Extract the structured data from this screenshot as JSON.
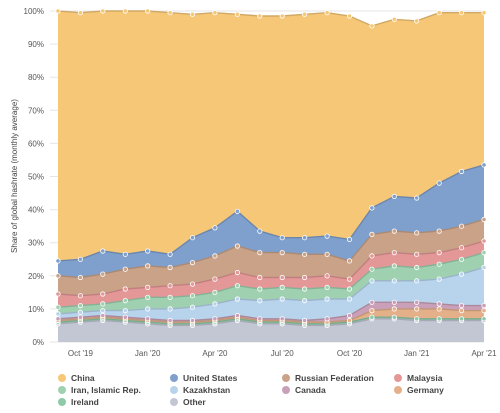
{
  "chart_data": {
    "type": "area",
    "stacked": true,
    "ylabel": "Share of global hashrate (monthly average)",
    "y_ticks": [
      "0%",
      "10%",
      "20%",
      "30%",
      "40%",
      "50%",
      "60%",
      "70%",
      "80%",
      "90%",
      "100%"
    ],
    "ylim": [
      0,
      100
    ],
    "x_ticks": [
      {
        "label": "Oct '19",
        "month": "2019-10"
      },
      {
        "label": "Jan '20",
        "month": "2020-01"
      },
      {
        "label": "Apr '20",
        "month": "2020-04"
      },
      {
        "label": "Jul '20",
        "month": "2020-07"
      },
      {
        "label": "Oct '20",
        "month": "2020-10"
      },
      {
        "label": "Jan '21",
        "month": "2021-01"
      },
      {
        "label": "Apr '21",
        "month": "2021-04"
      }
    ],
    "x": [
      "2019-09",
      "2019-10",
      "2019-11",
      "2019-12",
      "2020-01",
      "2020-02",
      "2020-03",
      "2020-04",
      "2020-05",
      "2020-06",
      "2020-07",
      "2020-08",
      "2020-09",
      "2020-10",
      "2020-11",
      "2020-12",
      "2021-01",
      "2021-02",
      "2021-03",
      "2021-04"
    ],
    "legend_position": "bottom",
    "series": [
      {
        "name": "Other",
        "color": "#c3c7d4",
        "values": [
          5.5,
          6.0,
          6.5,
          6.0,
          5.5,
          5.0,
          5.0,
          5.5,
          6.5,
          5.5,
          5.5,
          5.0,
          5.0,
          5.5,
          7.0,
          7.0,
          6.5,
          6.5,
          6.5,
          6.5
        ]
      },
      {
        "name": "Ireland",
        "color": "#8ec9a8",
        "values": [
          0.5,
          0.5,
          0.5,
          0.5,
          0.5,
          0.5,
          0.5,
          0.5,
          0.5,
          0.5,
          0.5,
          0.5,
          0.5,
          0.5,
          0.5,
          0.5,
          0.5,
          0.5,
          0.5,
          0.5
        ]
      },
      {
        "name": "Germany",
        "color": "#e3b08a",
        "values": [
          0.5,
          0.5,
          0.5,
          0.5,
          0.5,
          0.5,
          0.5,
          0.5,
          0.5,
          0.5,
          0.5,
          0.5,
          0.5,
          0.5,
          2.0,
          2.5,
          3.0,
          3.0,
          2.5,
          2.5
        ]
      },
      {
        "name": "Canada",
        "color": "#c9a0b8",
        "values": [
          0.5,
          0.5,
          0.5,
          0.5,
          0.5,
          0.5,
          0.5,
          0.5,
          0.5,
          0.5,
          0.5,
          0.5,
          1.0,
          1.5,
          2.5,
          2.0,
          2.0,
          1.5,
          1.5,
          1.5
        ]
      },
      {
        "name": "Kazakhstan",
        "color": "#b8d4ec",
        "values": [
          1.5,
          1.5,
          1.5,
          2.0,
          3.0,
          3.5,
          4.0,
          4.5,
          5.0,
          5.5,
          6.0,
          6.0,
          6.0,
          5.0,
          6.5,
          6.5,
          6.5,
          7.5,
          9.5,
          11.5
        ]
      },
      {
        "name": "Iran, Islamic Rep.",
        "color": "#9fd0b0",
        "values": [
          2.0,
          2.0,
          2.0,
          3.0,
          3.5,
          3.5,
          3.5,
          3.5,
          4.0,
          3.5,
          3.5,
          3.5,
          3.5,
          3.0,
          3.5,
          4.5,
          4.0,
          4.5,
          4.5,
          4.5
        ]
      },
      {
        "name": "Malaysia",
        "color": "#e39797",
        "values": [
          4.0,
          3.0,
          3.0,
          3.5,
          3.0,
          3.5,
          3.5,
          4.0,
          4.0,
          3.5,
          3.0,
          3.5,
          3.5,
          3.0,
          4.0,
          4.0,
          4.0,
          3.5,
          3.5,
          3.5
        ]
      },
      {
        "name": "Russian Federation",
        "color": "#c9a288",
        "values": [
          5.5,
          5.5,
          6.0,
          6.0,
          6.5,
          5.5,
          6.5,
          7.0,
          8.0,
          7.5,
          7.5,
          7.0,
          6.5,
          5.5,
          6.5,
          6.5,
          6.5,
          6.5,
          6.5,
          6.5
        ]
      },
      {
        "name": "United States",
        "color": "#7f9fcc",
        "values": [
          4.5,
          5.5,
          7.0,
          4.5,
          4.5,
          4.0,
          7.5,
          8.5,
          10.5,
          6.5,
          4.5,
          5.0,
          5.5,
          6.5,
          8.0,
          10.5,
          10.5,
          14.5,
          16.5,
          16.5
        ]
      },
      {
        "name": "China",
        "color": "#f5c777",
        "values": [
          75.5,
          74.5,
          72.5,
          73.5,
          72.5,
          73.0,
          67.5,
          65.0,
          59.5,
          65.0,
          67.0,
          67.5,
          67.5,
          67.5,
          55.0,
          53.5,
          53.5,
          51.5,
          48.0,
          46.0
        ]
      }
    ],
    "legend_order": [
      "China",
      "United States",
      "Russian Federation",
      "Malaysia",
      "Iran, Islamic Rep.",
      "Kazakhstan",
      "Canada",
      "Germany",
      "Ireland",
      "Other"
    ]
  }
}
